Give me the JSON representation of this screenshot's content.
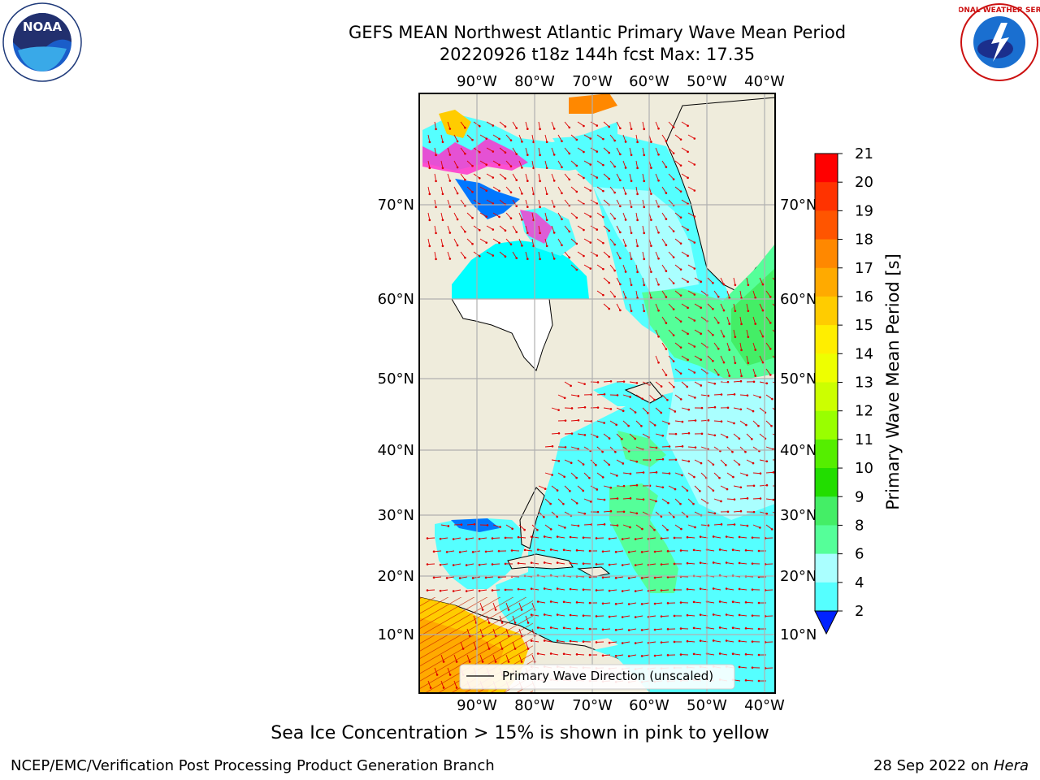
{
  "title": {
    "line1": "GEFS MEAN Northwest Atlantic Primary Wave Mean Period",
    "line2": "20220926 t18z 144h fcst   Max: 17.35"
  },
  "map": {
    "lon_labels": [
      "90°W",
      "80°W",
      "70°W",
      "60°W",
      "50°W",
      "40°W"
    ],
    "lat_labels": [
      "70°N",
      "60°N",
      "50°N",
      "40°N",
      "30°N",
      "20°N",
      "10°N"
    ],
    "legend_label": "Primary Wave Direction (unscaled)"
  },
  "colorbar": {
    "label": "Primary Wave Mean Period [s]",
    "ticks": [
      "21",
      "20",
      "19",
      "18",
      "17",
      "16",
      "15",
      "14",
      "13",
      "12",
      "11",
      "10",
      "9",
      "8",
      "6",
      "4",
      "2"
    ],
    "colors": [
      "#ff0000",
      "#ff3300",
      "#ff5500",
      "#ff8800",
      "#ffaa00",
      "#ffcc00",
      "#ffee00",
      "#eeff00",
      "#ccff00",
      "#99ff00",
      "#55ee00",
      "#22dd00",
      "#44ee66",
      "#55ff99",
      "#aaffff",
      "#55ffff",
      "#00eeff",
      "#0077ff",
      "#0022ff"
    ]
  },
  "caption": "Sea Ice Concentration > 15% is shown in pink to yellow",
  "credit_left": "NCEP/EMC/Verification Post Processing Product Generation Branch",
  "credit_right_date": "28 Sep 2022 on",
  "credit_right_host": "Hera",
  "logos": {
    "noaa_text": "NOAA",
    "nws_text": "NATIONAL WEATHER SERVICE"
  }
}
